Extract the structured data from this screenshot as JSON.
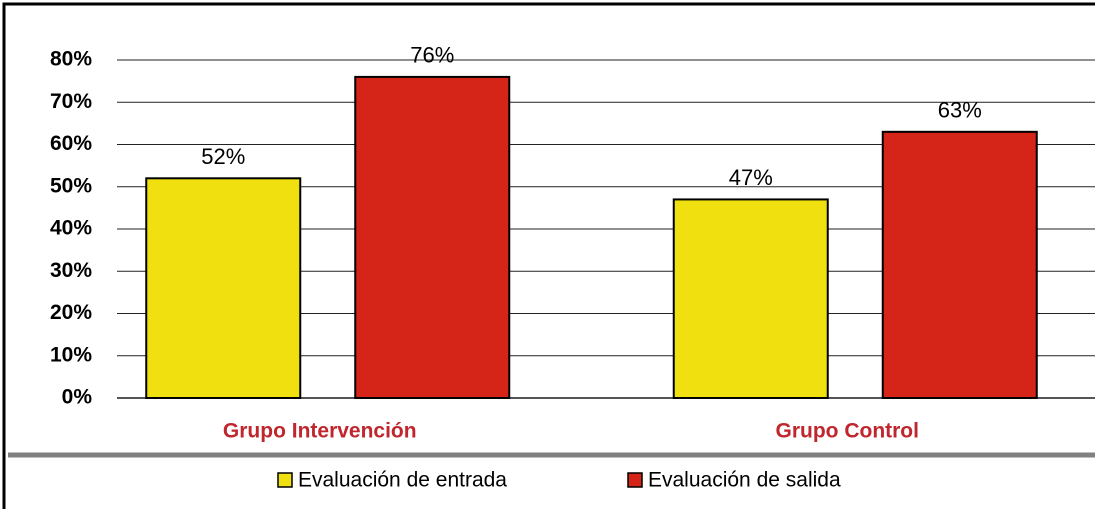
{
  "chart_data": {
    "type": "bar",
    "categories": [
      "Grupo Intervención",
      "Grupo Control"
    ],
    "series": [
      {
        "name": "Evaluación de entrada",
        "color": "#f0e010",
        "values": [
          52,
          47
        ],
        "value_labels": [
          "52%",
          "47%"
        ]
      },
      {
        "name": "Evaluación de salida",
        "color": "#d42518",
        "values": [
          76,
          63
        ],
        "value_labels": [
          "76%",
          "63%"
        ]
      }
    ],
    "ylim": [
      0,
      80
    ],
    "yticks": [
      {
        "value": 0,
        "label": "0%"
      },
      {
        "value": 10,
        "label": "10%"
      },
      {
        "value": 20,
        "label": "20%"
      },
      {
        "value": 30,
        "label": "30%"
      },
      {
        "value": 40,
        "label": "40%"
      },
      {
        "value": 50,
        "label": "50%"
      },
      {
        "value": 60,
        "label": "60%"
      },
      {
        "value": 70,
        "label": "70%"
      },
      {
        "value": 80,
        "label": "80%"
      }
    ],
    "grid": true,
    "legend": "bottom"
  }
}
